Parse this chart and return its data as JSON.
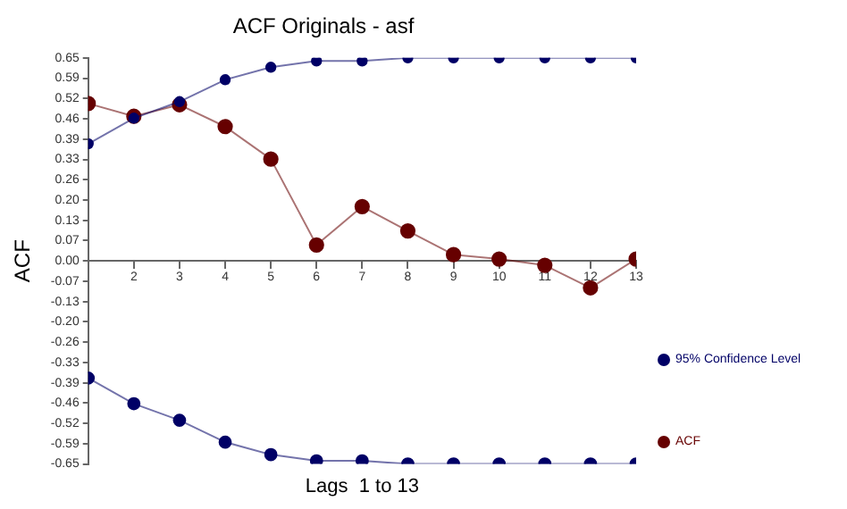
{
  "chart_data": {
    "type": "line",
    "title": "ACF Originals - asf",
    "xlabel": "Lags  1 to 13",
    "ylabel": "ACF",
    "x": [
      1,
      2,
      3,
      4,
      5,
      6,
      7,
      8,
      9,
      10,
      11,
      12,
      13
    ],
    "series": [
      {
        "name": "95% Confidence Level",
        "color": "#000066",
        "values": [
          0.375,
          0.457,
          0.51,
          0.58,
          0.62,
          0.64,
          0.64,
          0.65,
          0.65,
          0.65,
          0.65,
          0.65,
          0.65
        ]
      },
      {
        "color": "#000066",
        "values": [
          -0.375,
          -0.457,
          -0.51,
          -0.58,
          -0.62,
          -0.64,
          -0.64,
          -0.65,
          -0.65,
          -0.65,
          -0.65,
          -0.65,
          -0.65
        ]
      },
      {
        "name": "ACF",
        "color": "#660000",
        "values": [
          0.504,
          0.463,
          0.5,
          0.43,
          0.326,
          0.051,
          0.174,
          0.096,
          0.02,
          0.006,
          -0.014,
          -0.086,
          0.006
        ]
      }
    ],
    "xlim": [
      1,
      13
    ],
    "xticks": [
      2,
      3,
      4,
      5,
      6,
      7,
      8,
      9,
      10,
      11,
      12,
      13
    ],
    "ylim": [
      -0.65,
      0.65
    ],
    "yticks": [
      {
        "value": 0.65,
        "label": "0.65"
      },
      {
        "value": 0.585,
        "label": "0.59"
      },
      {
        "value": 0.52,
        "label": "0.52"
      },
      {
        "value": 0.455,
        "label": "0.46"
      },
      {
        "value": 0.39,
        "label": "0.39"
      },
      {
        "value": 0.325,
        "label": "0.33"
      },
      {
        "value": 0.26,
        "label": "0.26"
      },
      {
        "value": 0.195,
        "label": "0.20"
      },
      {
        "value": 0.13,
        "label": "0.13"
      },
      {
        "value": 0.065,
        "label": "0.07"
      },
      {
        "value": 0,
        "label": "0.00"
      },
      {
        "value": -0.065,
        "label": "-0.07"
      },
      {
        "value": -0.13,
        "label": "-0.13"
      },
      {
        "value": -0.195,
        "label": "-0.20"
      },
      {
        "value": -0.26,
        "label": "-0.26"
      },
      {
        "value": -0.325,
        "label": "-0.33"
      },
      {
        "value": -0.39,
        "label": "-0.39"
      },
      {
        "value": -0.455,
        "label": "-0.46"
      },
      {
        "value": -0.52,
        "label": "-0.52"
      },
      {
        "value": -0.585,
        "label": "-0.59"
      },
      {
        "value": -0.65,
        "label": "-0.65"
      }
    ],
    "grid": false,
    "legend": "right",
    "marker": "circle",
    "line_style": "solid"
  }
}
